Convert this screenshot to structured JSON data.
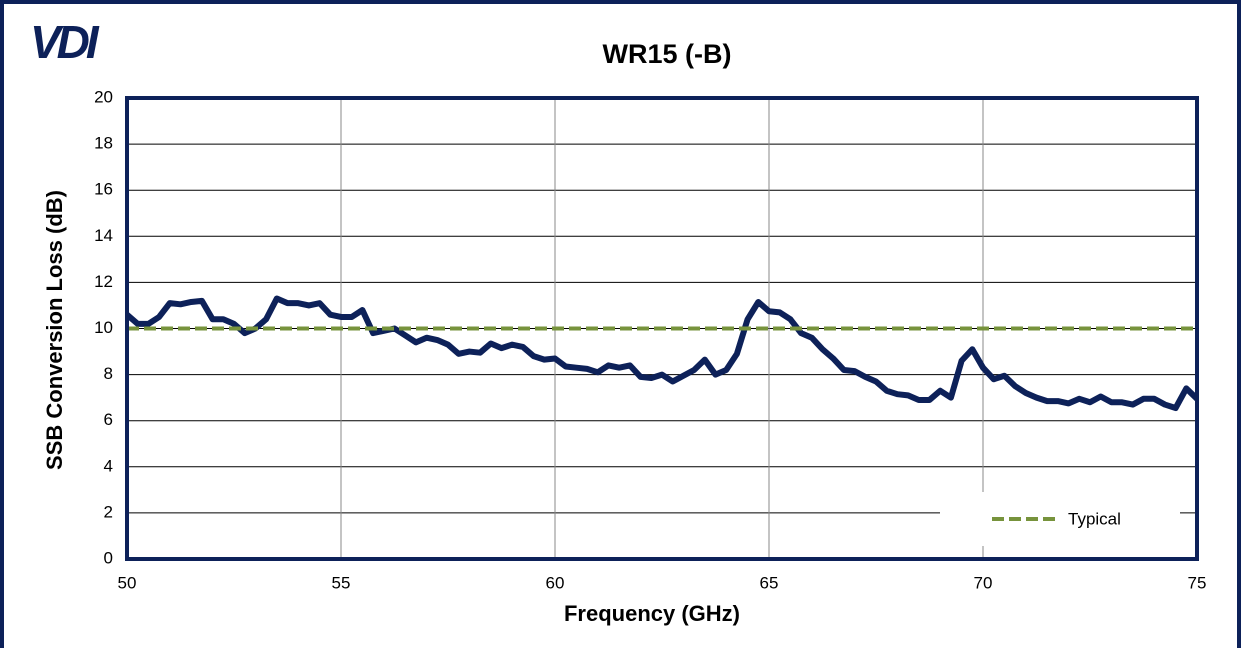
{
  "chart_data": {
    "type": "line",
    "logo": "VDI",
    "title": "WR15 (-B)",
    "x_label": "Frequency (GHz)",
    "y_label": "SSB Conversion Loss (dB)",
    "xlim": [
      50,
      75
    ],
    "ylim": [
      0,
      20
    ],
    "xticks": [
      50,
      55,
      60,
      65,
      70,
      75
    ],
    "yticks": [
      0,
      2,
      4,
      6,
      8,
      10,
      12,
      14,
      16,
      18,
      20
    ],
    "grid": true,
    "legend": "bottom-right",
    "series": [
      {
        "color": "#0d2159",
        "style": "solid",
        "x": [
          50,
          50.25,
          50.5,
          50.75,
          51,
          51.25,
          51.5,
          51.75,
          52,
          52.25,
          52.5,
          52.75,
          53,
          53.25,
          53.5,
          53.75,
          54,
          54.25,
          54.5,
          54.75,
          55,
          55.25,
          55.5,
          55.75,
          56,
          56.25,
          56.5,
          56.75,
          57,
          57.25,
          57.5,
          57.75,
          58,
          58.25,
          58.5,
          58.75,
          59,
          59.25,
          59.5,
          59.75,
          60,
          60.25,
          60.5,
          60.75,
          61,
          61.25,
          61.5,
          61.75,
          62,
          62.25,
          62.5,
          62.75,
          63,
          63.25,
          63.5,
          63.75,
          64,
          64.25,
          64.5,
          64.75,
          65,
          65.25,
          65.5,
          65.75,
          66,
          66.25,
          66.5,
          66.75,
          67,
          67.25,
          67.5,
          67.75,
          68,
          68.25,
          68.5,
          68.75,
          69,
          69.25,
          69.5,
          69.75,
          70,
          70.25,
          70.5,
          70.75,
          71,
          71.25,
          71.5,
          71.75,
          72,
          72.25,
          72.5,
          72.75,
          73,
          73.25,
          73.5,
          73.75,
          74,
          74.25,
          74.5,
          74.75,
          75
        ],
        "values": [
          10.6,
          10.2,
          10.2,
          10.5,
          11.1,
          11.05,
          11.15,
          11.2,
          10.4,
          10.4,
          10.2,
          9.8,
          10.0,
          10.4,
          11.3,
          11.1,
          11.1,
          11.0,
          11.1,
          10.6,
          10.5,
          10.5,
          10.8,
          9.8,
          9.9,
          10.0,
          9.7,
          9.4,
          9.6,
          9.5,
          9.3,
          8.9,
          9.0,
          8.95,
          9.35,
          9.15,
          9.3,
          9.2,
          8.8,
          8.65,
          8.7,
          8.35,
          8.3,
          8.25,
          8.1,
          8.4,
          8.3,
          8.4,
          7.9,
          7.85,
          8.0,
          7.7,
          7.95,
          8.2,
          8.65,
          8.0,
          8.2,
          8.9,
          10.4,
          11.15,
          10.75,
          10.7,
          10.4,
          9.8,
          9.6,
          9.1,
          8.7,
          8.2,
          8.15,
          7.9,
          7.7,
          7.3,
          7.15,
          7.1,
          6.9,
          6.9,
          7.3,
          7.0,
          8.6,
          9.1,
          8.3,
          7.8,
          7.95,
          7.5,
          7.2,
          7.0,
          6.85,
          6.85,
          6.75,
          6.95,
          6.8,
          7.05,
          6.8,
          6.8,
          6.7,
          6.95,
          6.95,
          6.7,
          6.55,
          7.4,
          6.95
        ]
      },
      {
        "name": "Typical",
        "color": "#77933c",
        "style": "dashed",
        "x": [
          50,
          75
        ],
        "values": [
          10,
          10
        ]
      }
    ]
  }
}
